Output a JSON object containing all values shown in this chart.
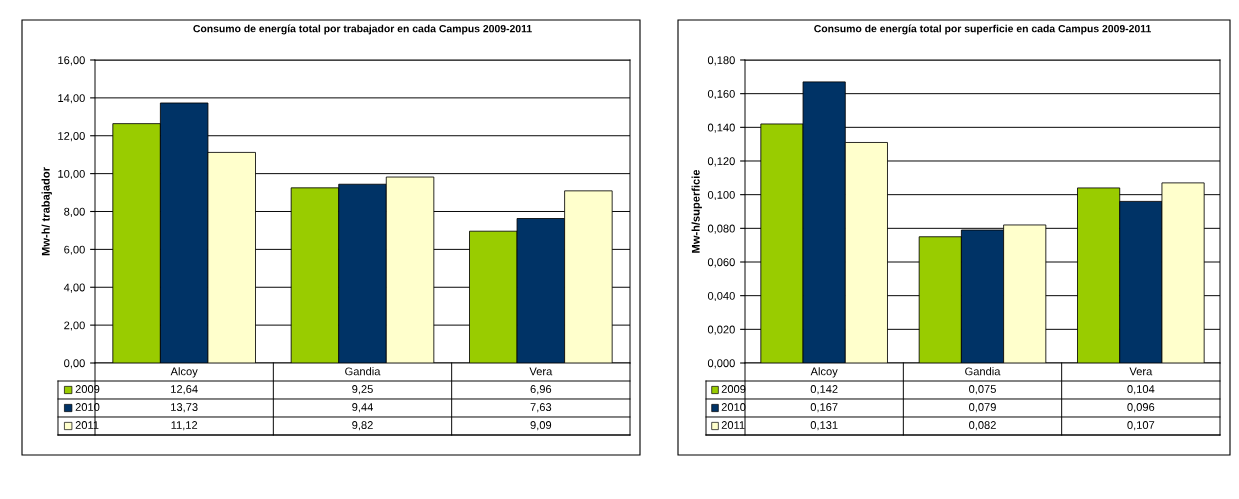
{
  "chart_data": [
    {
      "type": "bar",
      "title": "Consumo de energía total por trabajador en cada Campus 2009-2011",
      "ylabel": "Mw-h/ trabajador",
      "categories": [
        "Alcoy",
        "Gandia",
        "Vera"
      ],
      "series": [
        {
          "name": "2009",
          "color": "#99cc00",
          "values": [
            12.64,
            9.25,
            6.96
          ],
          "value_labels": [
            "12,64",
            "9,25",
            "6,96"
          ]
        },
        {
          "name": "2010",
          "color": "#003366",
          "values": [
            13.73,
            9.44,
            7.63
          ],
          "value_labels": [
            "13,73",
            "9,44",
            "7,63"
          ]
        },
        {
          "name": "2011",
          "color": "#ffffcc",
          "values": [
            11.12,
            9.82,
            9.09
          ],
          "value_labels": [
            "11,12",
            "9,82",
            "9,09"
          ]
        }
      ],
      "ylim": [
        0,
        16
      ],
      "yticks": [
        {
          "value": 0,
          "label": "0,00"
        },
        {
          "value": 2,
          "label": "2,00"
        },
        {
          "value": 4,
          "label": "4,00"
        },
        {
          "value": 6,
          "label": "6,00"
        },
        {
          "value": 8,
          "label": "8,00"
        },
        {
          "value": 10,
          "label": "10,00"
        },
        {
          "value": 12,
          "label": "12,00"
        },
        {
          "value": 14,
          "label": "14,00"
        },
        {
          "value": 16,
          "label": "16,00"
        }
      ],
      "grid": "y",
      "legend": "bottom"
    },
    {
      "type": "bar",
      "title": "Consumo de energía total por superficie en cada Campus 2009-2011",
      "ylabel": "Mw-h/superficie",
      "categories": [
        "Alcoy",
        "Gandia",
        "Vera"
      ],
      "series": [
        {
          "name": "2009",
          "color": "#99cc00",
          "values": [
            0.142,
            0.075,
            0.104
          ],
          "value_labels": [
            "0,142",
            "0,075",
            "0,104"
          ]
        },
        {
          "name": "2010",
          "color": "#003366",
          "values": [
            0.167,
            0.079,
            0.096
          ],
          "value_labels": [
            "0,167",
            "0,079",
            "0,096"
          ]
        },
        {
          "name": "2011",
          "color": "#ffffcc",
          "values": [
            0.131,
            0.082,
            0.107
          ],
          "value_labels": [
            "0,131",
            "0,082",
            "0,107"
          ]
        }
      ],
      "ylim": [
        0,
        0.18
      ],
      "yticks": [
        {
          "value": 0,
          "label": "0,000"
        },
        {
          "value": 0.02,
          "label": "0,020"
        },
        {
          "value": 0.04,
          "label": "0,040"
        },
        {
          "value": 0.06,
          "label": "0,060"
        },
        {
          "value": 0.08,
          "label": "0,080"
        },
        {
          "value": 0.1,
          "label": "0,100"
        },
        {
          "value": 0.12,
          "label": "0,120"
        },
        {
          "value": 0.14,
          "label": "0,140"
        },
        {
          "value": 0.16,
          "label": "0,160"
        },
        {
          "value": 0.18,
          "label": "0,180"
        }
      ],
      "grid": "y",
      "legend": "bottom"
    }
  ]
}
